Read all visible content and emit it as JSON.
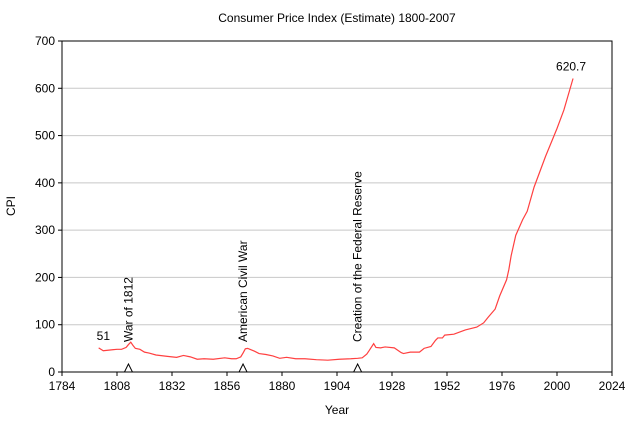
{
  "chart_data": {
    "type": "line",
    "title": "Consumer Price Index (Estimate) 1800-2007",
    "x_label": "Year",
    "y_label": "CPI",
    "x": [
      1800,
      1802,
      1804,
      1806,
      1808,
      1810,
      1812,
      1813,
      1814,
      1815,
      1816,
      1818,
      1820,
      1822,
      1825,
      1830,
      1834,
      1837,
      1840,
      1843,
      1846,
      1850,
      1855,
      1858,
      1860,
      1862,
      1863,
      1864,
      1865,
      1866,
      1868,
      1870,
      1873,
      1876,
      1879,
      1882,
      1886,
      1890,
      1895,
      1900,
      1905,
      1910,
      1913,
      1915,
      1917,
      1918,
      1920,
      1921,
      1923,
      1925,
      1929,
      1932,
      1933,
      1936,
      1940,
      1942,
      1945,
      1947,
      1948,
      1950,
      1951,
      1955,
      1960,
      1965,
      1968,
      1970,
      1973,
      1975,
      1978,
      1979,
      1980,
      1982,
      1985,
      1987,
      1990,
      1995,
      2000,
      2003,
      2007
    ],
    "series": [
      {
        "name": "CPI",
        "color": "#ff4040",
        "values": [
          51,
          45,
          46,
          47,
          48,
          48,
          52,
          58,
          63,
          56,
          50,
          48,
          42,
          40,
          36,
          33,
          31,
          35,
          32,
          27,
          28,
          27,
          30,
          28,
          28,
          32,
          40,
          49,
          50,
          48,
          44,
          39,
          37,
          34,
          29,
          31,
          28,
          28,
          26,
          25,
          27,
          28,
          29,
          30,
          38,
          45,
          60,
          52,
          51,
          53,
          51,
          41,
          39,
          42,
          42,
          50,
          54,
          67,
          72,
          72,
          78,
          80,
          89,
          95,
          104,
          116,
          133,
          161,
          195,
          217,
          246,
          289,
          322,
          340,
          391,
          456,
          515,
          554,
          620.7
        ]
      }
    ],
    "events": [
      {
        "x": 1813,
        "label": "War of 1812"
      },
      {
        "x": 1863,
        "label": "American Civil War"
      },
      {
        "x": 1913,
        "label": "Creation of the Federal Reserve"
      }
    ],
    "xlim": [
      1784,
      2024
    ],
    "xticks": [
      1784,
      1808,
      1832,
      1856,
      1880,
      1904,
      1928,
      1952,
      1976,
      2000,
      2024
    ],
    "ylim": [
      0,
      700
    ],
    "yticks": [
      0,
      100,
      200,
      300,
      400,
      500,
      600,
      700
    ],
    "grid": true
  }
}
